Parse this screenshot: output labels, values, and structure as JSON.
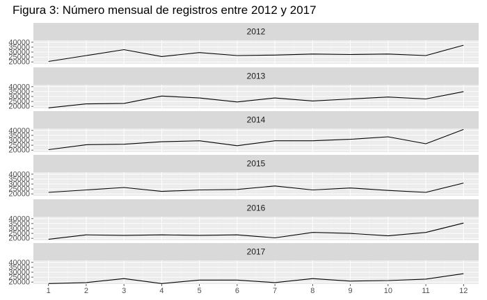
{
  "chart_data": {
    "type": "line",
    "title": "Figura 3: Número mensual de registros entre 2012 y 2017",
    "xlabel": "",
    "ylabel": "",
    "x": [
      1,
      2,
      3,
      4,
      5,
      6,
      7,
      8,
      9,
      10,
      11,
      12
    ],
    "x_tick_labels": [
      "1",
      "2",
      "3",
      "4",
      "5",
      "6",
      "7",
      "8",
      "9",
      "10",
      "11",
      "12"
    ],
    "y_tick_values": [
      20000,
      25000,
      30000,
      35000,
      40000
    ],
    "y_tick_labels": [
      "20000",
      "25000",
      "30000",
      "35000",
      "40000"
    ],
    "ylim": [
      18000,
      42000
    ],
    "xlim": [
      0.6,
      12.4
    ],
    "grid": true,
    "facet_by": "year",
    "series": [
      {
        "name": "2012",
        "values": [
          20500,
          26500,
          32500,
          25500,
          29500,
          26500,
          27000,
          28000,
          27500,
          28000,
          26500,
          37000
        ]
      },
      {
        "name": "2013",
        "values": [
          18500,
          22500,
          23000,
          30500,
          28500,
          24500,
          28500,
          25500,
          27500,
          29500,
          27500,
          35000
        ]
      },
      {
        "name": "2014",
        "values": [
          20500,
          25500,
          26000,
          28500,
          29500,
          24500,
          29500,
          29500,
          31000,
          33500,
          26500,
          41000
        ]
      },
      {
        "name": "2015",
        "values": [
          21500,
          24000,
          26500,
          22500,
          24000,
          24500,
          28000,
          24000,
          26000,
          23500,
          21500,
          31000
        ]
      },
      {
        "name": "2016",
        "values": [
          19000,
          23500,
          23000,
          23500,
          23000,
          23500,
          20500,
          26000,
          25000,
          22500,
          26000,
          35500
        ]
      },
      {
        "name": "2017",
        "values": [
          18500,
          19500,
          23500,
          18500,
          22000,
          22000,
          19500,
          23500,
          21000,
          21500,
          23000,
          28500
        ]
      }
    ]
  },
  "colors": {
    "panel_background": "#ebebeb",
    "strip_background": "#d9d9d9",
    "grid_major": "#ffffff",
    "grid_minor": "#f2f2f2",
    "line": "#000000",
    "tick_label": "#4d4d4d"
  }
}
